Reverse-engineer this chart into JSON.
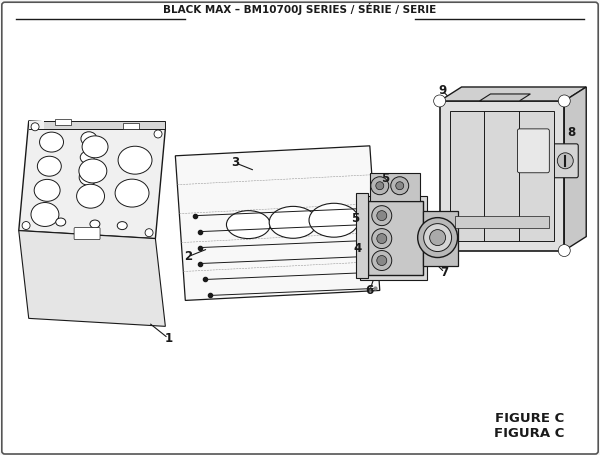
{
  "title": "BLACK MAX – BM10700J SERIES / SÉRIE / SERIE",
  "figure_label": "FIGURE C",
  "figura_label": "FIGURA C",
  "bg_color": "#f5f5f5",
  "line_color": "#1a1a1a",
  "part_fill": "#e8e8e8",
  "border_color": "#222222"
}
